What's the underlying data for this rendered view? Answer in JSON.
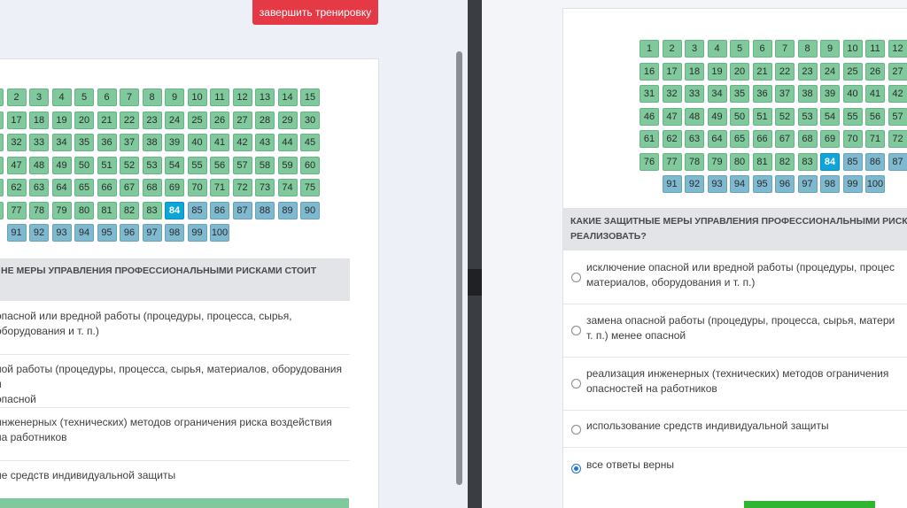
{
  "left": {
    "finish_button": "завершить тренировку",
    "question": "НЕ МЕРЫ УПРАВЛЕНИЯ ПРОФЕССИОНАЛЬНЫМИ РИСКАМИ СТОИТ",
    "answers": [
      {
        "line1": "опасной или вредной работы (процедуры, процесса, сырья,",
        "line2": "оборудования и т. п.)"
      },
      {
        "line1": "ной работы (процедуры, процесса, сырья, материалов, оборудования и",
        "line2": "опасной"
      },
      {
        "line1": "инженерных (технических) методов ограничения риска воздействия",
        "line2": "на работников"
      },
      {
        "line1": "ие средств индивидуальной защиты",
        "line2": ""
      }
    ]
  },
  "right": {
    "question_line1": "КАКИЕ ЗАЩИТНЫЕ МЕРЫ УПРАВЛЕНИЯ ПРОФЕССИОНАЛЬНЫМИ РИСК",
    "question_line2": "РЕАЛИЗОВАТЬ?",
    "answers": [
      {
        "line1": "исключение опасной или вредной работы (процедуры, процес",
        "line2": "материалов, оборудования и т. п.)",
        "selected": false
      },
      {
        "line1": "замена опасной работы (процедуры, процесса, сырья, матери",
        "line2": "т. п.) менее опасной",
        "selected": false
      },
      {
        "line1": "реализация инженерных (технических) методов ограничения",
        "line2": "опасностей на работников",
        "selected": false
      },
      {
        "line1": "использование средств индивидуальной защиты",
        "line2": "",
        "selected": false
      },
      {
        "line1": "все ответы верны",
        "line2": "",
        "selected": true
      }
    ]
  },
  "navigator": {
    "total": 100,
    "current": 84,
    "answered_through": 84,
    "colors": {
      "answered": "#7fc99d",
      "unanswered": "#7fb9cf",
      "current": "#0ea5d8"
    }
  },
  "colors": {
    "finish": "#e53945",
    "submit": "#2fb52f",
    "radio_selected": "#1b74d8"
  }
}
